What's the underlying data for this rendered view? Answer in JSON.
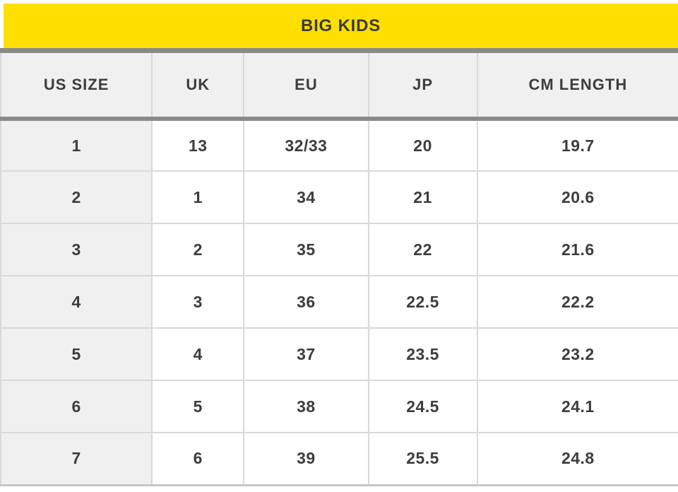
{
  "caption": {
    "title": "BIG KIDS"
  },
  "colors": {
    "accent_yellow": "#ffdf00",
    "divider_gray": "#8a8a8a",
    "shaded_cell_gray": "#f0f0f1",
    "border_light": "#d9d9d9",
    "text": "#3d3d3d"
  },
  "table": {
    "headers": [
      "US SIZE",
      "UK",
      "EU",
      "JP",
      "CM LENGTH"
    ],
    "rows": [
      [
        "1",
        "13",
        "32/33",
        "20",
        "19.7"
      ],
      [
        "2",
        "1",
        "34",
        "21",
        "20.6"
      ],
      [
        "3",
        "2",
        "35",
        "22",
        "21.6"
      ],
      [
        "4",
        "3",
        "36",
        "22.5",
        "22.2"
      ],
      [
        "5",
        "4",
        "37",
        "23.5",
        "23.2"
      ],
      [
        "6",
        "5",
        "38",
        "24.5",
        "24.1"
      ],
      [
        "7",
        "6",
        "39",
        "25.5",
        "24.8"
      ]
    ]
  },
  "chart_data": {
    "type": "table",
    "title": "BIG KIDS",
    "columns": [
      "US SIZE",
      "UK",
      "EU",
      "JP",
      "CM LENGTH"
    ],
    "rows": [
      [
        "1",
        "13",
        "32/33",
        "20",
        "19.7"
      ],
      [
        "2",
        "1",
        "34",
        "21",
        "20.6"
      ],
      [
        "3",
        "2",
        "35",
        "22",
        "21.6"
      ],
      [
        "4",
        "3",
        "36",
        "22.5",
        "22.2"
      ],
      [
        "5",
        "4",
        "37",
        "23.5",
        "23.2"
      ],
      [
        "6",
        "5",
        "38",
        "24.5",
        "24.1"
      ],
      [
        "7",
        "6",
        "39",
        "25.5",
        "24.8"
      ]
    ]
  }
}
